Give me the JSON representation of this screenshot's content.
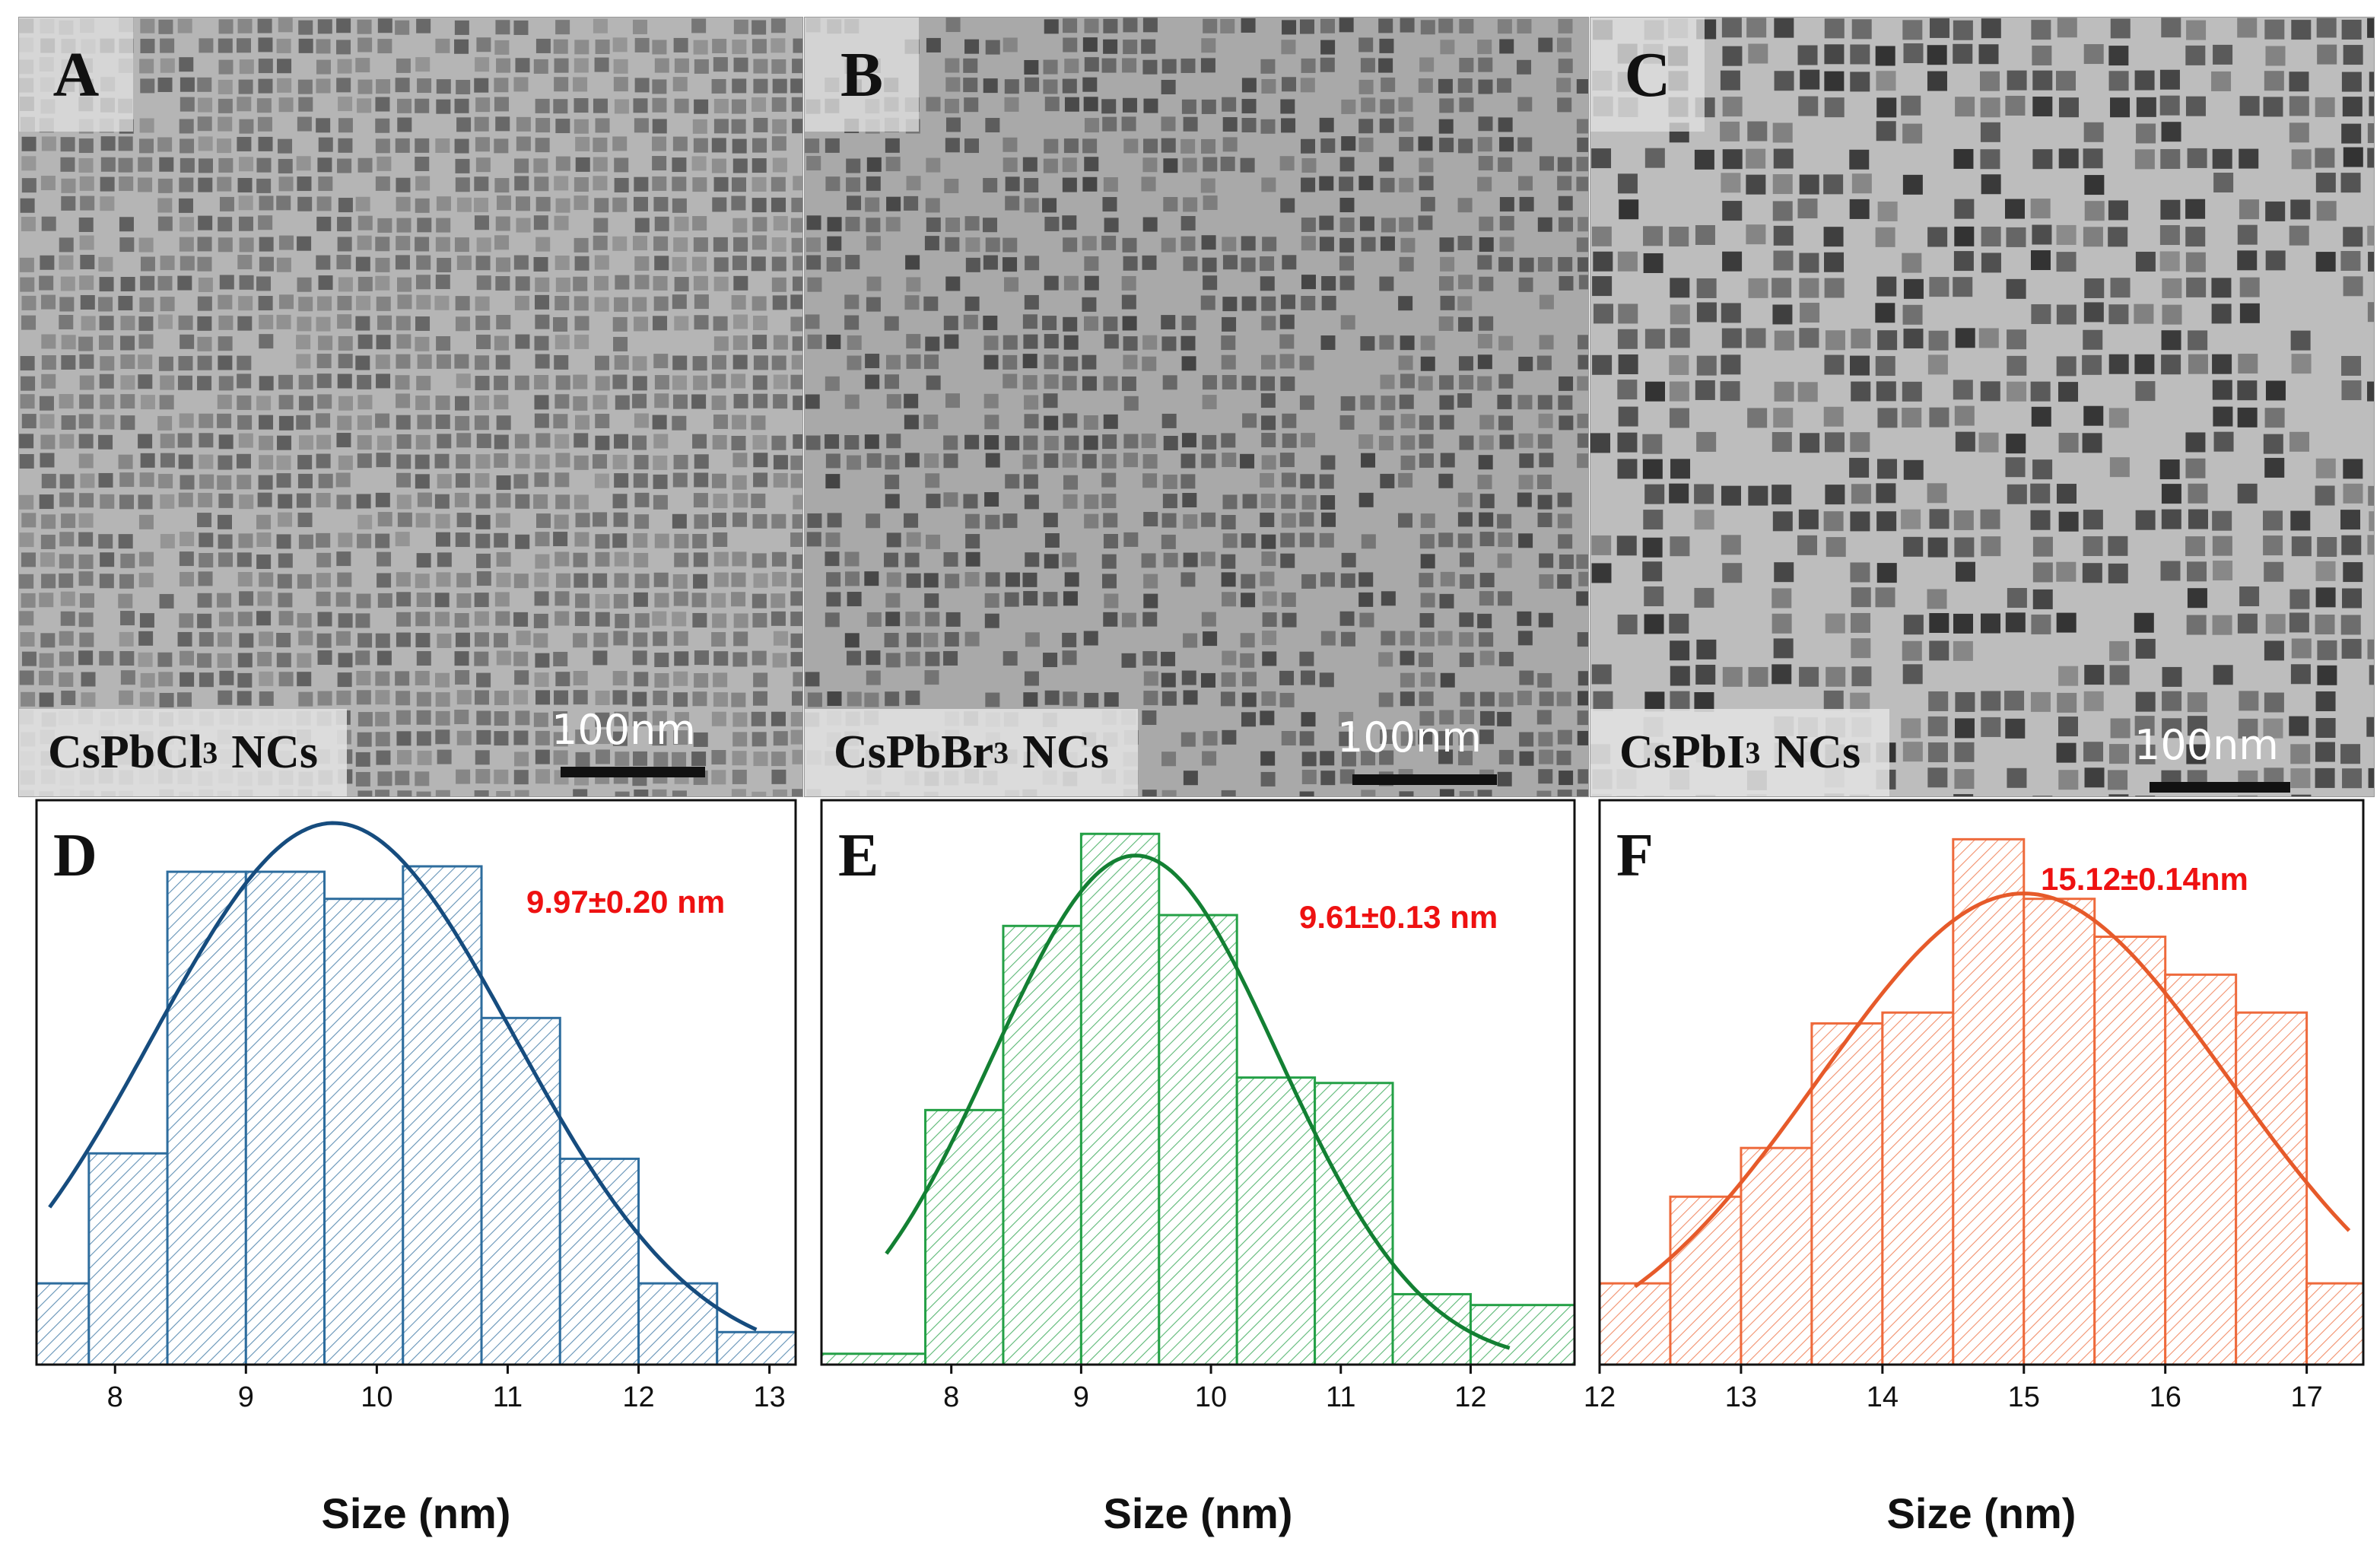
{
  "figure": {
    "tem_panels": [
      {
        "letter": "A",
        "formula": "CsPbCl",
        "subscript": "3",
        "suffix": "NCs",
        "scale_label": "100nm",
        "shade": "#b5b5b5",
        "spot": "#5e5e5e"
      },
      {
        "letter": "B",
        "formula": "CsPbBr",
        "subscript": "3",
        "suffix": "NCs",
        "scale_label": "100nm",
        "shade": "#a9a9a9",
        "spot": "#444444"
      },
      {
        "letter": "C",
        "formula": "CsPbI",
        "subscript": "3",
        "suffix": "NCs",
        "scale_label": "100nm",
        "shade": "#bdbdbd",
        "spot": "#333333"
      }
    ]
  },
  "chart_data": [
    {
      "type": "bar",
      "panel": "D",
      "title": "",
      "annotation": "9.97±0.20 nm",
      "xlabel": "Size (nm)",
      "ylabel": "",
      "color": "#2e6d9e",
      "curve_color": "#164c7e",
      "xlim": [
        7.4,
        13.2
      ],
      "ylim": [
        0,
        100
      ],
      "xticks": [
        8,
        9,
        10,
        11,
        12,
        13
      ],
      "bin_edges": [
        7.4,
        7.8,
        8.4,
        9.0,
        9.6,
        10.2,
        10.8,
        11.4,
        12.0,
        12.6,
        13.2
      ],
      "values": [
        15,
        39,
        91,
        91,
        86,
        92,
        64,
        38,
        15,
        6
      ],
      "fit": {
        "mean": 9.67,
        "sigma": 1.38,
        "amp": 100,
        "x_range": [
          7.5,
          12.9
        ]
      }
    },
    {
      "type": "bar",
      "panel": "E",
      "title": "",
      "annotation": "9.61±0.13 nm",
      "xlabel": "Size (nm)",
      "ylabel": "",
      "color": "#24a046",
      "curve_color": "#138033",
      "xlim": [
        7.0,
        12.8
      ],
      "ylim": [
        0,
        100
      ],
      "xticks": [
        8,
        9,
        10,
        11,
        12
      ],
      "bin_edges": [
        7.0,
        7.8,
        8.4,
        9.0,
        9.6,
        10.2,
        10.8,
        11.4,
        12.0,
        12.8
      ],
      "values": [
        2,
        47,
        81,
        98,
        83,
        53,
        52,
        13,
        11
      ],
      "fit": {
        "mean": 9.42,
        "sigma": 1.1,
        "amp": 94,
        "x_range": [
          7.5,
          12.3
        ]
      }
    },
    {
      "type": "bar",
      "panel": "F",
      "title": "",
      "annotation": "15.12±0.14nm",
      "xlabel": "Size (nm)",
      "ylabel": "",
      "color": "#ee6a3c",
      "curve_color": "#e65a2a",
      "xlim": [
        12.0,
        17.4
      ],
      "ylim": [
        0,
        100
      ],
      "xticks": [
        12,
        13,
        14,
        15,
        16,
        17
      ],
      "bin_edges": [
        12.0,
        12.5,
        13.0,
        13.5,
        14.0,
        14.5,
        15.0,
        15.5,
        16.0,
        16.5,
        17.0,
        17.4
      ],
      "values": [
        15,
        31,
        40,
        63,
        65,
        97,
        86,
        79,
        72,
        65,
        15
      ],
      "fit": {
        "mean": 15.0,
        "sigma": 1.45,
        "amp": 87,
        "x_range": [
          12.25,
          17.3
        ]
      }
    }
  ]
}
